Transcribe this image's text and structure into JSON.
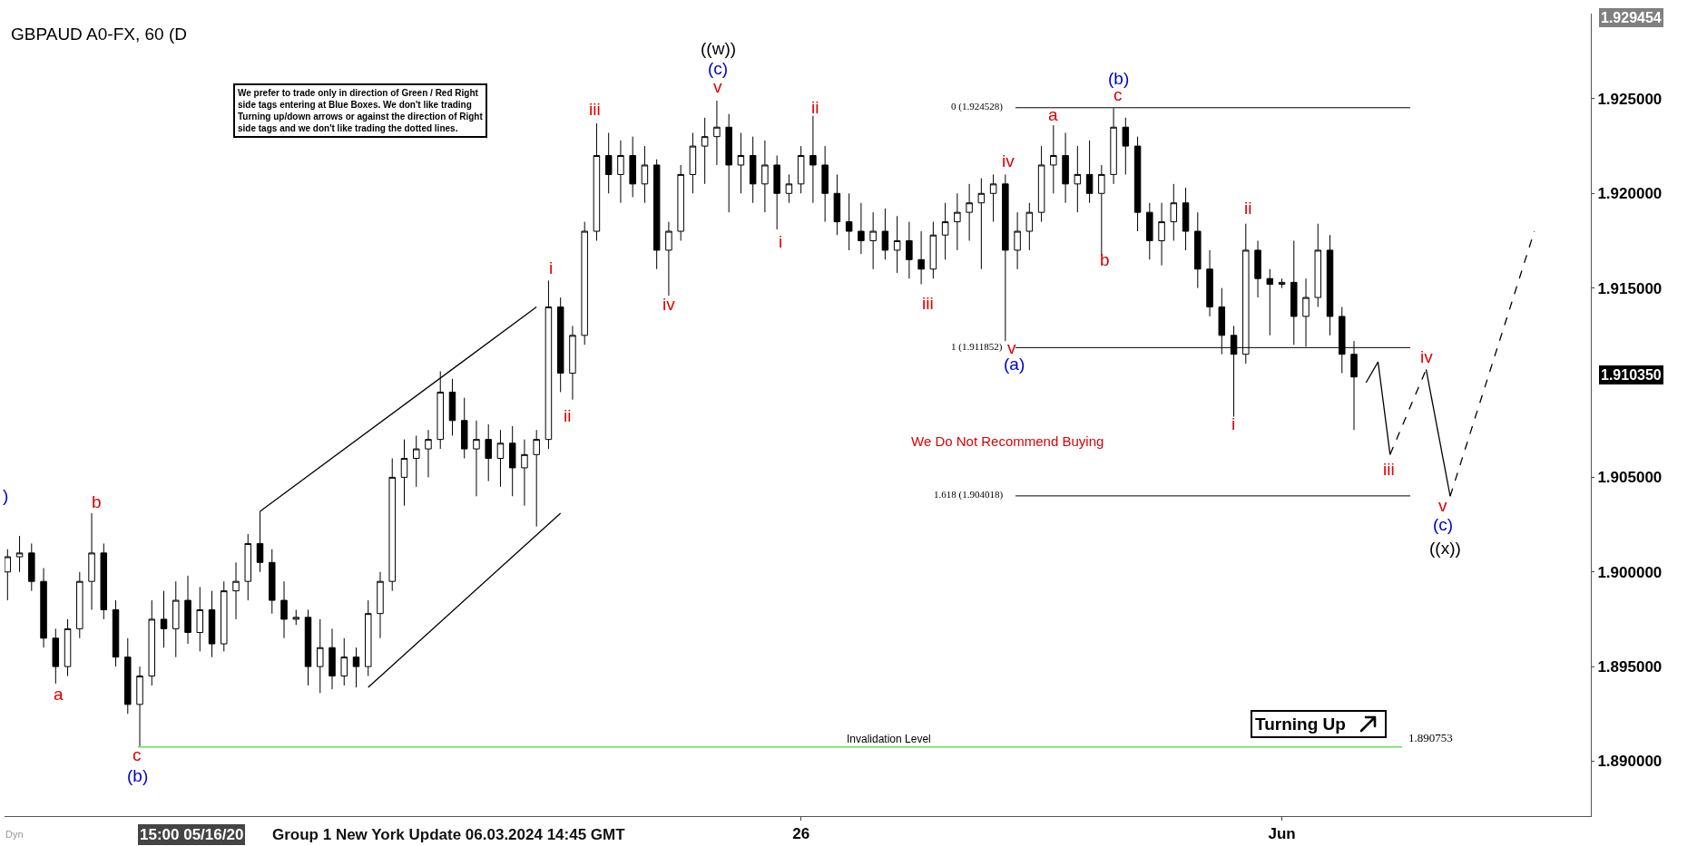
{
  "chart_data": {
    "type": "candlestick",
    "title": "GBPAUD A0-FX, 60 (D",
    "categories": [
      null,
      null,
      null,
      null,
      null,
      null,
      null,
      null,
      null,
      null,
      null,
      null,
      null,
      null,
      null,
      null,
      null,
      null,
      null,
      null,
      null,
      null,
      null,
      null,
      null,
      null,
      null,
      null,
      null,
      null,
      null,
      null,
      null,
      null,
      null,
      null,
      null,
      null,
      null,
      null,
      null,
      null,
      null,
      null,
      null,
      null,
      null,
      null,
      null,
      null,
      null,
      null,
      null,
      null,
      null,
      null,
      null,
      null,
      null,
      null,
      null,
      null,
      null,
      null,
      null,
      null,
      "26",
      null,
      null,
      null,
      null,
      null,
      null,
      null,
      null,
      null,
      null,
      null,
      null,
      null,
      null,
      null,
      null,
      null,
      null,
      null,
      null,
      null,
      null,
      null,
      null,
      null,
      null,
      null,
      null,
      null,
      null,
      null,
      null,
      null,
      null,
      null,
      null,
      null,
      null,
      null,
      "Jun",
      null,
      null,
      null,
      null,
      null,
      null,
      null,
      null,
      null,
      null,
      null,
      null,
      null,
      null,
      null,
      null,
      null,
      null,
      null,
      null,
      null
    ],
    "ohlc": [
      [
        1.9,
        1.9012,
        1.8985,
        1.9008
      ],
      [
        1.9008,
        1.9019,
        1.9,
        1.901
      ],
      [
        1.901,
        1.9015,
        1.899,
        1.8995
      ],
      [
        1.8995,
        1.9002,
        1.896,
        1.8965
      ],
      [
        1.8965,
        1.897,
        1.8941,
        1.895
      ],
      [
        1.895,
        1.8975,
        1.8945,
        1.897
      ],
      [
        1.897,
        1.9,
        1.8965,
        1.8995
      ],
      [
        1.8995,
        1.9031,
        1.898,
        1.901
      ],
      [
        1.901,
        1.9015,
        1.8975,
        1.898
      ],
      [
        1.898,
        1.8985,
        1.895,
        1.8955
      ],
      [
        1.8955,
        1.8965,
        1.8925,
        1.893
      ],
      [
        1.893,
        1.895,
        1.8908,
        1.8945
      ],
      [
        1.8945,
        1.8985,
        1.894,
        1.8975
      ],
      [
        1.8975,
        1.899,
        1.896,
        1.897
      ],
      [
        1.897,
        1.8995,
        1.8955,
        1.8985
      ],
      [
        1.8985,
        1.8998,
        1.8962,
        1.8968
      ],
      [
        1.8968,
        1.8992,
        1.8958,
        1.898
      ],
      [
        1.898,
        1.899,
        1.8955,
        1.8962
      ],
      [
        1.8962,
        1.8995,
        1.8958,
        1.899
      ],
      [
        1.899,
        1.9005,
        1.8975,
        1.8995
      ],
      [
        1.8995,
        1.902,
        1.8985,
        1.9015
      ],
      [
        1.9015,
        1.9032,
        1.9,
        1.9005
      ],
      [
        1.9005,
        1.9012,
        1.8978,
        1.8985
      ],
      [
        1.8985,
        1.8995,
        1.8965,
        1.8975
      ],
      [
        1.8975,
        1.898,
        1.8972,
        1.8976
      ],
      [
        1.8976,
        1.898,
        1.894,
        1.895
      ],
      [
        1.895,
        1.8975,
        1.8936,
        1.896
      ],
      [
        1.896,
        1.897,
        1.8938,
        1.8945
      ],
      [
        1.8945,
        1.8965,
        1.894,
        1.8955
      ],
      [
        1.8955,
        1.896,
        1.8939,
        1.895
      ],
      [
        1.895,
        1.8985,
        1.8945,
        1.8978
      ],
      [
        1.8978,
        1.9,
        1.8965,
        1.8995
      ],
      [
        1.8995,
        1.906,
        1.899,
        1.905
      ],
      [
        1.905,
        1.907,
        1.9035,
        1.906
      ],
      [
        1.906,
        1.9072,
        1.9045,
        1.9065
      ],
      [
        1.9065,
        1.9075,
        1.905,
        1.907
      ],
      [
        1.907,
        1.9106,
        1.9065,
        1.9095
      ],
      [
        1.9095,
        1.9102,
        1.9072,
        1.908
      ],
      [
        1.908,
        1.9092,
        1.906,
        1.9065
      ],
      [
        1.9065,
        1.908,
        1.904,
        1.907
      ],
      [
        1.907,
        1.9078,
        1.9048,
        1.906
      ],
      [
        1.906,
        1.9075,
        1.9045,
        1.9068
      ],
      [
        1.9068,
        1.9077,
        1.904,
        1.9055
      ],
      [
        1.9055,
        1.907,
        1.9035,
        1.9062
      ],
      [
        1.9062,
        1.9075,
        1.9024,
        1.907
      ],
      [
        1.907,
        1.9154,
        1.9065,
        1.914
      ],
      [
        1.914,
        1.9145,
        1.9095,
        1.9105
      ],
      [
        1.9105,
        1.913,
        1.9091,
        1.9125
      ],
      [
        1.9125,
        1.9185,
        1.912,
        1.918
      ],
      [
        1.918,
        1.9237,
        1.9175,
        1.922
      ],
      [
        1.922,
        1.9232,
        1.92,
        1.921
      ],
      [
        1.921,
        1.9228,
        1.9195,
        1.922
      ],
      [
        1.922,
        1.923,
        1.9198,
        1.9205
      ],
      [
        1.9205,
        1.9225,
        1.9195,
        1.9215
      ],
      [
        1.9215,
        1.9218,
        1.916,
        1.917
      ],
      [
        1.917,
        1.9185,
        1.9146,
        1.918
      ],
      [
        1.918,
        1.9215,
        1.9175,
        1.921
      ],
      [
        1.921,
        1.9232,
        1.92,
        1.9225
      ],
      [
        1.9225,
        1.924,
        1.9205,
        1.923
      ],
      [
        1.923,
        1.9249,
        1.9215,
        1.9235
      ],
      [
        1.9235,
        1.9242,
        1.919,
        1.9215
      ],
      [
        1.9215,
        1.9232,
        1.92,
        1.922
      ],
      [
        1.922,
        1.923,
        1.9195,
        1.9205
      ],
      [
        1.9205,
        1.9228,
        1.919,
        1.9215
      ],
      [
        1.9215,
        1.922,
        1.9181,
        1.92
      ],
      [
        1.92,
        1.921,
        1.9195,
        1.9205
      ],
      [
        1.9205,
        1.9225,
        1.92,
        1.922
      ],
      [
        1.922,
        1.9241,
        1.9195,
        1.9215
      ],
      [
        1.9215,
        1.9225,
        1.9185,
        1.92
      ],
      [
        1.92,
        1.921,
        1.9178,
        1.9185
      ],
      [
        1.9185,
        1.92,
        1.917,
        1.918
      ],
      [
        1.918,
        1.9195,
        1.9168,
        1.9175
      ],
      [
        1.9175,
        1.919,
        1.916,
        1.918
      ],
      [
        1.918,
        1.9192,
        1.9165,
        1.917
      ],
      [
        1.917,
        1.9188,
        1.9158,
        1.9175
      ],
      [
        1.9175,
        1.9185,
        1.9155,
        1.9165
      ],
      [
        1.9165,
        1.918,
        1.9152,
        1.916
      ],
      [
        1.916,
        1.9185,
        1.9155,
        1.9178
      ],
      [
        1.9178,
        1.9195,
        1.9165,
        1.9185
      ],
      [
        1.9185,
        1.92,
        1.917,
        1.919
      ],
      [
        1.919,
        1.9205,
        1.9175,
        1.9195
      ],
      [
        1.9195,
        1.9208,
        1.916,
        1.92
      ],
      [
        1.92,
        1.921,
        1.9185,
        1.9205
      ],
      [
        1.9205,
        1.921,
        1.9122,
        1.917
      ],
      [
        1.917,
        1.919,
        1.916,
        1.918
      ],
      [
        1.918,
        1.9195,
        1.917,
        1.919
      ],
      [
        1.919,
        1.9225,
        1.9185,
        1.9215
      ],
      [
        1.9215,
        1.9236,
        1.92,
        1.922
      ],
      [
        1.922,
        1.9232,
        1.9195,
        1.9205
      ],
      [
        1.9205,
        1.9225,
        1.919,
        1.921
      ],
      [
        1.921,
        1.9228,
        1.9195,
        1.92
      ],
      [
        1.92,
        1.9215,
        1.9167,
        1.921
      ],
      [
        1.921,
        1.9245,
        1.9205,
        1.9235
      ],
      [
        1.9235,
        1.924,
        1.921,
        1.9225
      ],
      [
        1.9225,
        1.923,
        1.918,
        1.919
      ],
      [
        1.919,
        1.9195,
        1.9165,
        1.9175
      ],
      [
        1.9175,
        1.9195,
        1.9162,
        1.9185
      ],
      [
        1.9185,
        1.9205,
        1.9175,
        1.9195
      ],
      [
        1.9195,
        1.9203,
        1.917,
        1.918
      ],
      [
        1.918,
        1.919,
        1.915,
        1.916
      ],
      [
        1.916,
        1.917,
        1.9135,
        1.914
      ],
      [
        1.914,
        1.915,
        1.9115,
        1.9125
      ],
      [
        1.9125,
        1.913,
        1.9082,
        1.9115
      ],
      [
        1.9115,
        1.9184,
        1.911,
        1.917
      ],
      [
        1.917,
        1.9175,
        1.9145,
        1.9155
      ],
      [
        1.9155,
        1.916,
        1.9125,
        1.9152
      ],
      [
        1.9152,
        1.9155,
        1.915,
        1.9153
      ],
      [
        1.9153,
        1.9175,
        1.912,
        1.9135
      ],
      [
        1.9135,
        1.9155,
        1.9119,
        1.9145
      ],
      [
        1.9145,
        1.9184,
        1.914,
        1.917
      ],
      [
        1.917,
        1.9178,
        1.9125,
        1.9135
      ],
      [
        1.9135,
        1.914,
        1.9105,
        1.9115
      ],
      [
        1.9115,
        1.9122,
        1.9075,
        1.9103
      ],
      null,
      null,
      null,
      null,
      null,
      null,
      null,
      null,
      null,
      null,
      null,
      null,
      null,
      null,
      null
    ],
    "color": "#000000",
    "series": [
      {
        "type": "line",
        "color": "#000000",
        "line_style": "solid",
        "values": [
          null,
          null,
          null,
          null,
          null,
          null,
          null,
          null,
          null,
          null,
          null,
          null,
          null,
          null,
          null,
          null,
          null,
          null,
          null,
          null,
          null,
          1.9032,
          null,
          null,
          null,
          null,
          null,
          null,
          null,
          null,
          null,
          null,
          null,
          null,
          null,
          null,
          null,
          null,
          null,
          null,
          null,
          null,
          null,
          null,
          1.914,
          null,
          null,
          null,
          null,
          null,
          null,
          null,
          null,
          null,
          null,
          null,
          null,
          null,
          null,
          null,
          null,
          null,
          null,
          null,
          null,
          null,
          null,
          null,
          null,
          null,
          null,
          null,
          null,
          null,
          null,
          null,
          null,
          null,
          null,
          null,
          null,
          null,
          null,
          null,
          null,
          null,
          null,
          null,
          null,
          null,
          null,
          null,
          null,
          null,
          null,
          null,
          null,
          null,
          null,
          null,
          null,
          null,
          null,
          null,
          null,
          null,
          null,
          null,
          null,
          null,
          null,
          null,
          null,
          null,
          null,
          null,
          null,
          null,
          null,
          null,
          null,
          null,
          null,
          null,
          null,
          null,
          null,
          null
        ]
      },
      {
        "type": "line",
        "color": "#000000",
        "line_style": "solid",
        "values": [
          null,
          null,
          null,
          null,
          null,
          null,
          null,
          null,
          null,
          null,
          null,
          null,
          null,
          null,
          null,
          null,
          null,
          null,
          null,
          null,
          null,
          null,
          null,
          null,
          null,
          null,
          null,
          null,
          null,
          null,
          1.8939,
          null,
          null,
          null,
          null,
          null,
          null,
          null,
          null,
          null,
          null,
          null,
          null,
          null,
          null,
          null,
          1.9031,
          null,
          null,
          null,
          null,
          null,
          null,
          null,
          null,
          null,
          null,
          null,
          null,
          null,
          null,
          null,
          null,
          null,
          null,
          null,
          null,
          null,
          null,
          null,
          null,
          null,
          null,
          null,
          null,
          null,
          null,
          null,
          null,
          null,
          null,
          null,
          null,
          null,
          null,
          null,
          null,
          null,
          null,
          null,
          null,
          null,
          null,
          null,
          null,
          null,
          null,
          null,
          null,
          null,
          null,
          null,
          null,
          null,
          null,
          null,
          null,
          null,
          null,
          null,
          null,
          null,
          null,
          null,
          null,
          null,
          null,
          null,
          null,
          null,
          null,
          null,
          null,
          null,
          null,
          null,
          null,
          null
        ]
      },
      {
        "type": "line",
        "color": "#000000",
        "line_style": "solid",
        "values": [
          null,
          null,
          null,
          null,
          null,
          null,
          null,
          null,
          null,
          null,
          null,
          null,
          null,
          null,
          null,
          null,
          null,
          null,
          null,
          null,
          null,
          null,
          null,
          null,
          null,
          null,
          null,
          null,
          null,
          null,
          null,
          null,
          null,
          null,
          null,
          null,
          null,
          null,
          null,
          null,
          null,
          null,
          null,
          null,
          null,
          null,
          null,
          null,
          null,
          null,
          null,
          null,
          null,
          null,
          null,
          null,
          null,
          null,
          null,
          null,
          null,
          null,
          null,
          null,
          null,
          null,
          null,
          null,
          null,
          null,
          null,
          null,
          null,
          null,
          null,
          null,
          null,
          null,
          null,
          null,
          null,
          null,
          null,
          null,
          null,
          null,
          null,
          null,
          null,
          null,
          null,
          null,
          null,
          null,
          null,
          null,
          null,
          null,
          null,
          null,
          null,
          null,
          null,
          null,
          null,
          null,
          null,
          null,
          null,
          null,
          null,
          null,
          null,
          1.91,
          1.9111,
          1.9062,
          null,
          null,
          null,
          null,
          null,
          null,
          null,
          null,
          null,
          null,
          null,
          null
        ]
      },
      {
        "type": "line",
        "color": "#000000",
        "line_style": "solid",
        "values": [
          null,
          null,
          null,
          null,
          null,
          null,
          null,
          null,
          null,
          null,
          null,
          null,
          null,
          null,
          null,
          null,
          null,
          null,
          null,
          null,
          null,
          null,
          null,
          null,
          null,
          null,
          null,
          null,
          null,
          null,
          null,
          null,
          null,
          null,
          null,
          null,
          null,
          null,
          null,
          null,
          null,
          null,
          null,
          null,
          null,
          null,
          null,
          null,
          null,
          null,
          null,
          null,
          null,
          null,
          null,
          null,
          null,
          null,
          null,
          null,
          null,
          null,
          null,
          null,
          null,
          null,
          null,
          null,
          null,
          null,
          null,
          null,
          null,
          null,
          null,
          null,
          null,
          null,
          null,
          null,
          null,
          null,
          null,
          null,
          null,
          null,
          null,
          null,
          null,
          null,
          null,
          null,
          null,
          null,
          null,
          null,
          null,
          null,
          null,
          null,
          null,
          null,
          null,
          null,
          null,
          null,
          null,
          null,
          null,
          null,
          null,
          null,
          null,
          null,
          null,
          null,
          null,
          null,
          1.9107,
          null,
          1.904,
          null,
          null,
          null,
          null,
          null,
          null,
          null
        ]
      },
      {
        "type": "line",
        "color": "#000000",
        "line_style": "dashed",
        "values": [
          null,
          null,
          null,
          null,
          null,
          null,
          null,
          null,
          null,
          null,
          null,
          null,
          null,
          null,
          null,
          null,
          null,
          null,
          null,
          null,
          null,
          null,
          null,
          null,
          null,
          null,
          null,
          null,
          null,
          null,
          null,
          null,
          null,
          null,
          null,
          null,
          null,
          null,
          null,
          null,
          null,
          null,
          null,
          null,
          null,
          null,
          null,
          null,
          null,
          null,
          null,
          null,
          null,
          null,
          null,
          null,
          null,
          null,
          null,
          null,
          null,
          null,
          null,
          null,
          null,
          null,
          null,
          null,
          null,
          null,
          null,
          null,
          null,
          null,
          null,
          null,
          null,
          null,
          null,
          null,
          null,
          null,
          null,
          null,
          null,
          null,
          null,
          null,
          null,
          null,
          null,
          null,
          null,
          null,
          null,
          null,
          null,
          null,
          null,
          null,
          null,
          null,
          null,
          null,
          null,
          null,
          null,
          null,
          null,
          null,
          null,
          null,
          null,
          null,
          null,
          1.9062,
          null,
          null,
          1.9107,
          null,
          null,
          null,
          null,
          null,
          null,
          null,
          null,
          null
        ]
      },
      {
        "type": "line",
        "color": "#000000",
        "line_style": "dashed",
        "values": [
          null,
          null,
          null,
          null,
          null,
          null,
          null,
          null,
          null,
          null,
          null,
          null,
          null,
          null,
          null,
          null,
          null,
          null,
          null,
          null,
          null,
          null,
          null,
          null,
          null,
          null,
          null,
          null,
          null,
          null,
          null,
          null,
          null,
          null,
          null,
          null,
          null,
          null,
          null,
          null,
          null,
          null,
          null,
          null,
          null,
          null,
          null,
          null,
          null,
          null,
          null,
          null,
          null,
          null,
          null,
          null,
          null,
          null,
          null,
          null,
          null,
          null,
          null,
          null,
          null,
          null,
          null,
          null,
          null,
          null,
          null,
          null,
          null,
          null,
          null,
          null,
          null,
          null,
          null,
          null,
          null,
          null,
          null,
          null,
          null,
          null,
          null,
          null,
          null,
          null,
          null,
          null,
          null,
          null,
          null,
          null,
          null,
          null,
          null,
          null,
          null,
          null,
          null,
          null,
          null,
          null,
          null,
          null,
          null,
          null,
          null,
          null,
          null,
          null,
          null,
          null,
          null,
          null,
          null,
          null,
          1.904,
          null,
          null,
          null,
          null,
          null,
          null,
          1.918
        ]
      }
    ],
    "ylim": [
      1.8871,
      1.9295
    ],
    "yticks": [
      {
        "value": 1.89,
        "label": "1.890000"
      },
      {
        "value": 1.895,
        "label": "1.895000"
      },
      {
        "value": 1.9,
        "label": "1.900000"
      },
      {
        "value": 1.905,
        "label": "1.905000"
      },
      {
        "value": 1.915,
        "label": "1.915000"
      },
      {
        "value": 1.92,
        "label": "1.920000"
      },
      {
        "value": 1.925,
        "label": "1.925000"
      }
    ],
    "grid": false,
    "ref_lines": [
      {
        "axis": "y",
        "value": 1.924528,
        "label": "0 (1.924528)",
        "color": "#000000"
      },
      {
        "axis": "y",
        "value": 1.911852,
        "label": "1 (1.911852)",
        "color": "#000000"
      },
      {
        "axis": "y",
        "value": 1.904018,
        "label": "1.618 (1.904018)",
        "color": "#000000"
      },
      {
        "axis": "y",
        "value": 1.890753,
        "label": "Invalidation Level",
        "color": "#66dd66"
      }
    ],
    "annotations": [
      "We prefer to trade only in direction of Green / Red Right\nside tags entering at Blue Boxes. We don't like trading\nTurning up/down arrows or against the direction of Right\nside tags and we don't like trading the dotted lines.",
      "We Do Not Recommend Buying",
      "Turning Up",
      "Group 1 New York Update 06.03.2024 14:45 GMT",
      "15:00 05/16/20",
      "Dyn",
      "1.890753",
      "1.910350",
      "1.929454",
      ")",
      "a",
      "b",
      "c",
      "(b)",
      "i",
      "ii",
      "iii",
      "iv",
      "v",
      "(c)",
      "((w))",
      "i",
      "ii",
      "iii",
      "iv",
      "v",
      "(a)",
      "a",
      "b",
      "c",
      "(b)",
      "i",
      "ii",
      "iii",
      "iv",
      "v",
      "(c)",
      "((x))"
    ]
  }
}
